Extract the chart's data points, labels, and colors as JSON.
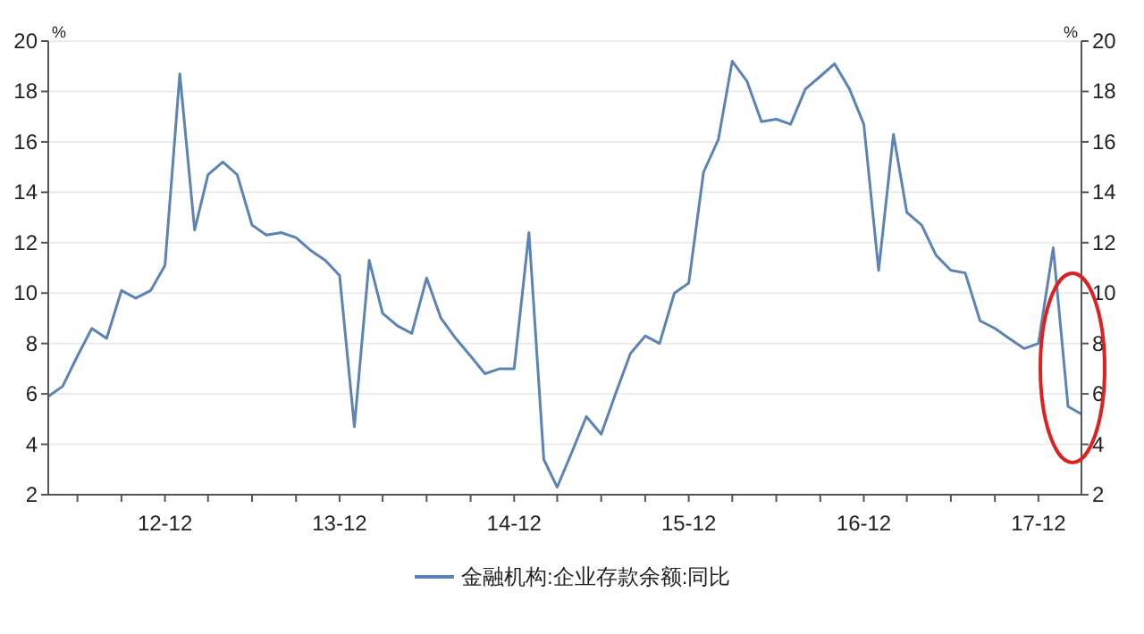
{
  "chart_data": {
    "type": "line",
    "ylabel": "%",
    "y2label": "%",
    "x": [
      "2012-04",
      "2012-05",
      "2012-06",
      "2012-07",
      "2012-08",
      "2012-09",
      "2012-10",
      "2012-11",
      "2012-12",
      "2013-01",
      "2013-02",
      "2013-03",
      "2013-04",
      "2013-05",
      "2013-06",
      "2013-07",
      "2013-08",
      "2013-09",
      "2013-10",
      "2013-11",
      "2013-12",
      "2014-01",
      "2014-02",
      "2014-03",
      "2014-04",
      "2014-05",
      "2014-06",
      "2014-07",
      "2014-08",
      "2014-09",
      "2014-10",
      "2014-11",
      "2014-12",
      "2015-01",
      "2015-02",
      "2015-03",
      "2015-04",
      "2015-05",
      "2015-06",
      "2015-07",
      "2015-08",
      "2015-09",
      "2015-10",
      "2015-11",
      "2015-12",
      "2016-01",
      "2016-02",
      "2016-03",
      "2016-04",
      "2016-05",
      "2016-06",
      "2016-07",
      "2016-08",
      "2016-09",
      "2016-10",
      "2016-11",
      "2016-12",
      "2017-01",
      "2017-02",
      "2017-03",
      "2017-04",
      "2017-05",
      "2017-06",
      "2017-07",
      "2017-08",
      "2017-09",
      "2017-10",
      "2017-11",
      "2017-12",
      "2018-01",
      "2018-02",
      "2018-03"
    ],
    "series": [
      {
        "name": "金融机构:企业存款余额:同比",
        "color": "#5b83b5",
        "values": [
          5.9,
          6.3,
          7.5,
          8.6,
          8.2,
          10.1,
          9.8,
          10.1,
          11.1,
          18.7,
          12.5,
          14.7,
          15.2,
          14.7,
          12.7,
          12.3,
          12.4,
          12.2,
          11.7,
          11.3,
          10.7,
          4.7,
          11.3,
          9.2,
          8.7,
          8.4,
          10.6,
          9.0,
          8.2,
          7.5,
          6.8,
          7.0,
          7.0,
          12.4,
          3.4,
          2.3,
          3.7,
          5.1,
          4.4,
          6.0,
          7.6,
          8.3,
          8.0,
          10.0,
          10.4,
          14.8,
          16.1,
          19.2,
          18.4,
          16.8,
          16.9,
          16.7,
          18.1,
          18.6,
          19.1,
          18.1,
          16.7,
          10.9,
          16.3,
          13.2,
          12.7,
          11.5,
          10.9,
          10.8,
          8.9,
          8.6,
          8.2,
          7.8,
          8.0,
          11.8,
          5.5,
          5.2
        ]
      }
    ],
    "xlim": [
      "2012-04",
      "2018-03"
    ],
    "xticks": [
      {
        "value": "2012-06",
        "label": null
      },
      {
        "value": "2012-09",
        "label": null
      },
      {
        "value": "2012-12",
        "label": "12-12"
      },
      {
        "value": "2013-03",
        "label": null
      },
      {
        "value": "2013-06",
        "label": null
      },
      {
        "value": "2013-09",
        "label": null
      },
      {
        "value": "2013-12",
        "label": "13-12"
      },
      {
        "value": "2014-03",
        "label": null
      },
      {
        "value": "2014-06",
        "label": null
      },
      {
        "value": "2014-09",
        "label": null
      },
      {
        "value": "2014-12",
        "label": "14-12"
      },
      {
        "value": "2015-03",
        "label": null
      },
      {
        "value": "2015-06",
        "label": null
      },
      {
        "value": "2015-09",
        "label": null
      },
      {
        "value": "2015-12",
        "label": "15-12"
      },
      {
        "value": "2016-03",
        "label": null
      },
      {
        "value": "2016-06",
        "label": null
      },
      {
        "value": "2016-09",
        "label": null
      },
      {
        "value": "2016-12",
        "label": "16-12"
      },
      {
        "value": "2017-03",
        "label": null
      },
      {
        "value": "2017-06",
        "label": null
      },
      {
        "value": "2017-09",
        "label": null
      },
      {
        "value": "2017-12",
        "label": "17-12"
      }
    ],
    "ylim": [
      2,
      20
    ],
    "yticks": [
      2,
      4,
      6,
      8,
      10,
      12,
      14,
      16,
      18,
      20
    ],
    "y2lim": [
      2,
      20
    ],
    "y2ticks": [
      2,
      4,
      6,
      8,
      10,
      12,
      14,
      16,
      18,
      20
    ],
    "grid": "y",
    "legend": "bottom",
    "marker": "none",
    "line_style": "solid"
  }
}
